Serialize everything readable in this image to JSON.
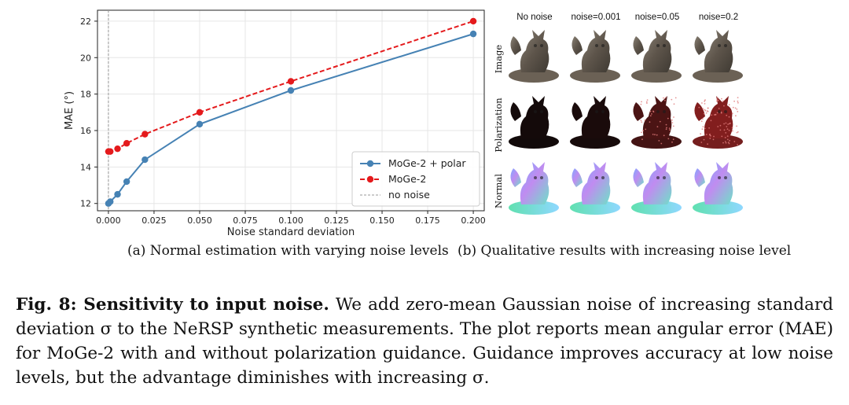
{
  "figure": {
    "subcaption_a": "(a) Normal estimation with varying noise levels",
    "subcaption_b": "(b) Qualitative results with increasing noise level",
    "caption_label": "Fig. 8: Sensitivity to input noise.",
    "caption_text": "We add zero-mean Gaussian noise of increasing standard deviation σ to the NeRSP synthetic measurements. The plot reports mean angular error (MAE) for MoGe-2 with and without polarization guidance. Guidance improves accuracy at low noise levels, but the advantage diminishes with increasing σ."
  },
  "qualitative": {
    "columns": [
      "No noise",
      "noise=0.001",
      "noise=0.05",
      "noise=0.2"
    ],
    "rows": [
      "Image",
      "Polarization",
      "Normal"
    ]
  },
  "chart_data": {
    "type": "line",
    "title": "",
    "xlabel": "Noise standard deviation",
    "ylabel": "MAE (°)",
    "xlim": [
      -0.006,
      0.206
    ],
    "ylim": [
      11.6,
      22.6
    ],
    "xticks": [
      "0.000",
      "0.025",
      "0.050",
      "0.075",
      "0.100",
      "0.125",
      "0.150",
      "0.175",
      "0.200"
    ],
    "yticks": [
      "12",
      "14",
      "16",
      "18",
      "20",
      "22"
    ],
    "grid": true,
    "legend_position": "lower-right",
    "series": [
      {
        "name": "MoGe-2 + polar",
        "color": "#4682b4",
        "style": "solid",
        "x": [
          0.0,
          0.001,
          0.005,
          0.01,
          0.02,
          0.05,
          0.1,
          0.2
        ],
        "y": [
          12.0,
          12.1,
          12.5,
          13.2,
          14.4,
          16.35,
          18.2,
          21.3
        ]
      },
      {
        "name": "MoGe-2",
        "color": "#e41a1c",
        "style": "dashed",
        "x": [
          0.0,
          0.001,
          0.005,
          0.01,
          0.02,
          0.05,
          0.1,
          0.2
        ],
        "y": [
          14.85,
          14.85,
          15.0,
          15.3,
          15.8,
          17.0,
          18.7,
          22.0
        ]
      }
    ],
    "reference_line": {
      "name": "no noise",
      "x": 0.0,
      "color": "#999999",
      "style": "dotted"
    }
  }
}
